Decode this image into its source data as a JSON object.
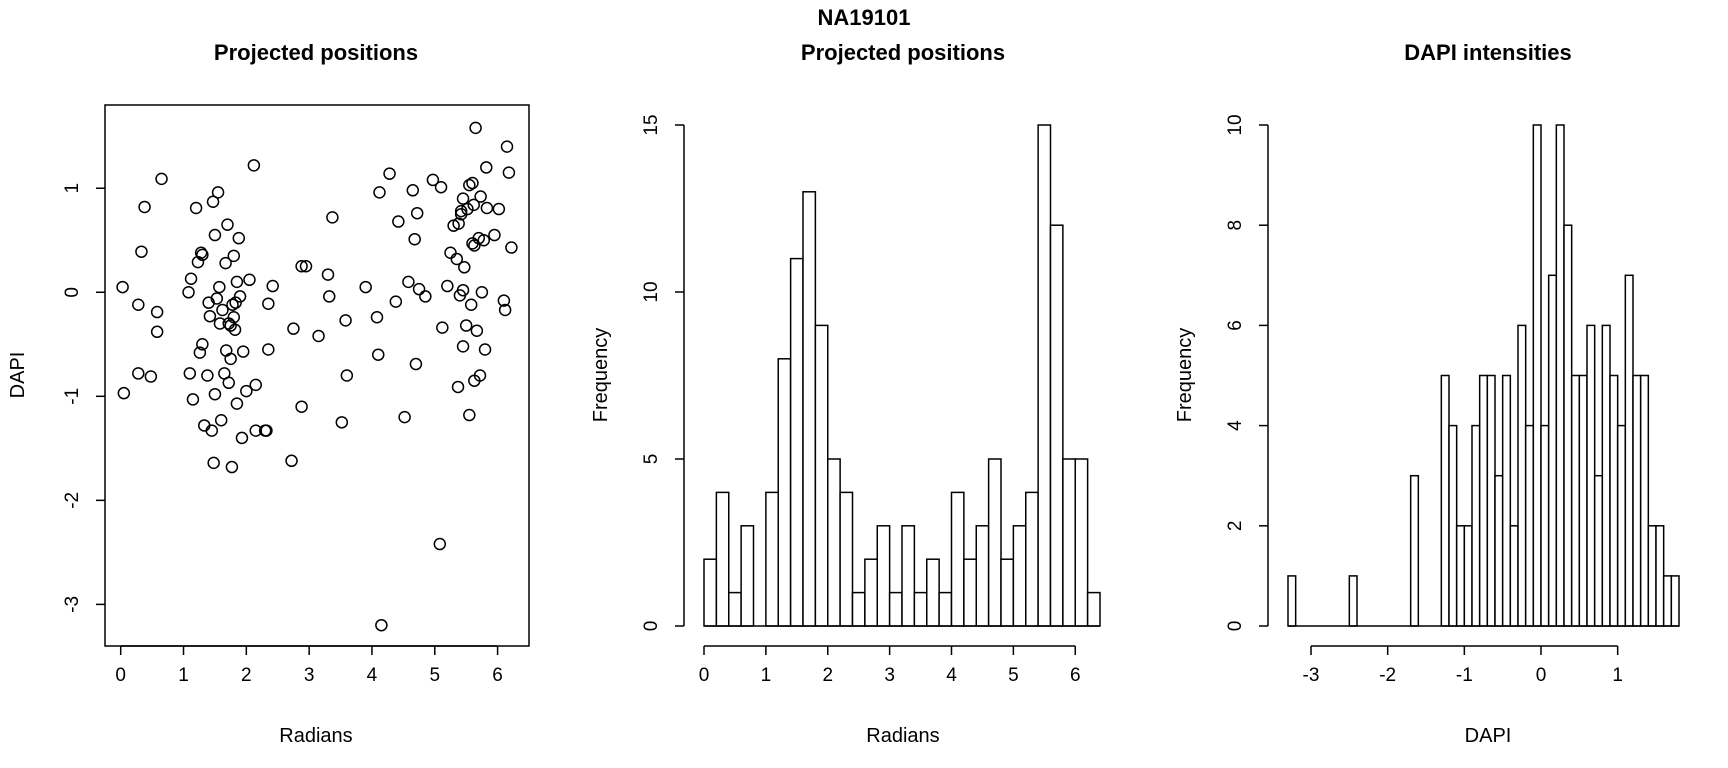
{
  "figure": {
    "title": "NA19101"
  },
  "chart_data": [
    {
      "type": "scatter",
      "title": "Projected positions",
      "xlabel": "Radians",
      "ylabel": "DAPI",
      "xlim": [
        -0.25,
        6.5
      ],
      "ylim": [
        -3.4,
        1.8
      ],
      "xticks": [
        0,
        1,
        2,
        3,
        4,
        5,
        6
      ],
      "yticks": [
        -3,
        -2,
        -1,
        0,
        1
      ],
      "grid": false,
      "points": [
        [
          0.03,
          0.05
        ],
        [
          0.05,
          -0.97
        ],
        [
          0.28,
          -0.12
        ],
        [
          0.28,
          -0.78
        ],
        [
          0.33,
          0.39
        ],
        [
          0.38,
          0.82
        ],
        [
          0.48,
          -0.81
        ],
        [
          0.58,
          -0.19
        ],
        [
          0.58,
          -0.38
        ],
        [
          0.65,
          1.09
        ],
        [
          1.08,
          0.0
        ],
        [
          1.1,
          -0.78
        ],
        [
          1.12,
          0.13
        ],
        [
          1.15,
          -1.03
        ],
        [
          1.2,
          0.81
        ],
        [
          1.23,
          0.29
        ],
        [
          1.26,
          -0.58
        ],
        [
          1.28,
          0.38
        ],
        [
          1.3,
          0.36
        ],
        [
          1.3,
          -0.5
        ],
        [
          1.33,
          -1.28
        ],
        [
          1.38,
          -0.8
        ],
        [
          1.4,
          -0.1
        ],
        [
          1.42,
          -0.23
        ],
        [
          1.45,
          -1.33
        ],
        [
          1.47,
          0.87
        ],
        [
          1.48,
          -1.64
        ],
        [
          1.5,
          -0.98
        ],
        [
          1.5,
          0.55
        ],
        [
          1.53,
          -0.06
        ],
        [
          1.55,
          0.96
        ],
        [
          1.57,
          0.05
        ],
        [
          1.58,
          -0.3
        ],
        [
          1.6,
          -1.23
        ],
        [
          1.62,
          -0.17
        ],
        [
          1.65,
          -0.78
        ],
        [
          1.67,
          0.28
        ],
        [
          1.68,
          -0.56
        ],
        [
          1.7,
          0.65
        ],
        [
          1.72,
          -0.3
        ],
        [
          1.72,
          -0.87
        ],
        [
          1.75,
          -0.32
        ],
        [
          1.75,
          -0.64
        ],
        [
          1.77,
          -1.68
        ],
        [
          1.78,
          -0.12
        ],
        [
          1.8,
          0.35
        ],
        [
          1.8,
          -0.24
        ],
        [
          1.82,
          -0.36
        ],
        [
          1.83,
          -0.1
        ],
        [
          1.85,
          0.1
        ],
        [
          1.85,
          -1.07
        ],
        [
          1.88,
          0.52
        ],
        [
          1.9,
          -0.04
        ],
        [
          1.93,
          -1.4
        ],
        [
          1.95,
          -0.57
        ],
        [
          2.0,
          -0.95
        ],
        [
          2.05,
          0.12
        ],
        [
          2.12,
          1.22
        ],
        [
          2.15,
          -0.89
        ],
        [
          2.15,
          -1.33
        ],
        [
          2.3,
          -1.33
        ],
        [
          2.32,
          -1.33
        ],
        [
          2.35,
          -0.55
        ],
        [
          2.35,
          -0.11
        ],
        [
          2.42,
          0.06
        ],
        [
          2.72,
          -1.62
        ],
        [
          2.75,
          -0.35
        ],
        [
          2.88,
          0.25
        ],
        [
          2.88,
          -1.1
        ],
        [
          2.95,
          0.25
        ],
        [
          3.15,
          -0.42
        ],
        [
          3.3,
          0.17
        ],
        [
          3.32,
          -0.04
        ],
        [
          3.37,
          0.72
        ],
        [
          3.52,
          -1.25
        ],
        [
          3.58,
          -0.27
        ],
        [
          3.6,
          -0.8
        ],
        [
          3.9,
          0.05
        ],
        [
          4.08,
          -0.24
        ],
        [
          4.1,
          -0.6
        ],
        [
          4.12,
          0.96
        ],
        [
          4.15,
          -3.2
        ],
        [
          4.28,
          1.14
        ],
        [
          4.38,
          -0.09
        ],
        [
          4.42,
          0.68
        ],
        [
          4.52,
          -1.2
        ],
        [
          4.58,
          0.1
        ],
        [
          4.65,
          0.98
        ],
        [
          4.68,
          0.51
        ],
        [
          4.7,
          -0.69
        ],
        [
          4.72,
          0.76
        ],
        [
          4.75,
          0.03
        ],
        [
          4.85,
          -0.04
        ],
        [
          4.97,
          1.08
        ],
        [
          5.08,
          -2.42
        ],
        [
          5.1,
          1.01
        ],
        [
          5.12,
          -0.34
        ],
        [
          5.2,
          0.06
        ],
        [
          5.25,
          0.38
        ],
        [
          5.3,
          0.64
        ],
        [
          5.35,
          0.32
        ],
        [
          5.37,
          -0.91
        ],
        [
          5.38,
          0.66
        ],
        [
          5.4,
          -0.03
        ],
        [
          5.42,
          0.78
        ],
        [
          5.42,
          0.75
        ],
        [
          5.45,
          0.02
        ],
        [
          5.45,
          0.9
        ],
        [
          5.45,
          -0.52
        ],
        [
          5.47,
          0.24
        ],
        [
          5.5,
          -0.32
        ],
        [
          5.52,
          0.8
        ],
        [
          5.55,
          -1.18
        ],
        [
          5.55,
          1.03
        ],
        [
          5.58,
          -0.12
        ],
        [
          5.6,
          0.47
        ],
        [
          5.6,
          1.05
        ],
        [
          5.62,
          0.84
        ],
        [
          5.63,
          0.45
        ],
        [
          5.63,
          -0.85
        ],
        [
          5.65,
          1.58
        ],
        [
          5.67,
          -0.37
        ],
        [
          5.7,
          0.52
        ],
        [
          5.72,
          -0.8
        ],
        [
          5.73,
          0.92
        ],
        [
          5.75,
          0.0
        ],
        [
          5.78,
          0.5
        ],
        [
          5.8,
          -0.55
        ],
        [
          5.82,
          1.2
        ],
        [
          5.83,
          0.81
        ],
        [
          5.95,
          0.55
        ],
        [
          6.02,
          0.8
        ],
        [
          6.1,
          -0.08
        ],
        [
          6.12,
          -0.17
        ],
        [
          6.15,
          1.4
        ],
        [
          6.18,
          1.15
        ],
        [
          6.22,
          0.43
        ]
      ]
    },
    {
      "type": "bar",
      "subtype": "histogram",
      "title": "Projected positions",
      "xlabel": "Radians",
      "ylabel": "Frequency",
      "bin_start": 0,
      "bin_width": 0.2,
      "values": [
        2,
        4,
        1,
        3,
        0,
        4,
        8,
        11,
        13,
        9,
        5,
        4,
        1,
        2,
        3,
        1,
        3,
        1,
        2,
        1,
        4,
        2,
        3,
        5,
        2,
        3,
        4,
        15,
        12,
        5,
        5,
        1
      ],
      "xticks": [
        0,
        1,
        2,
        3,
        4,
        5,
        6
      ],
      "yticks": [
        0,
        5,
        10,
        15
      ],
      "ylim": [
        0,
        15
      ],
      "grid": false
    },
    {
      "type": "bar",
      "subtype": "histogram",
      "title": "DAPI intensities",
      "xlabel": "DAPI",
      "ylabel": "Frequency",
      "bin_start": -3.3,
      "bin_width": 0.1,
      "values": [
        1,
        0,
        0,
        0,
        0,
        0,
        0,
        0,
        1,
        0,
        0,
        0,
        0,
        0,
        0,
        0,
        3,
        0,
        0,
        0,
        5,
        4,
        2,
        2,
        4,
        5,
        5,
        3,
        5,
        2,
        6,
        4,
        10,
        4,
        7,
        10,
        8,
        5,
        5,
        6,
        3,
        6,
        5,
        4,
        7,
        5,
        5,
        2,
        2,
        1,
        1
      ],
      "xticks": [
        -3,
        -2,
        -1,
        0,
        1
      ],
      "yticks": [
        0,
        2,
        4,
        6,
        8,
        10
      ],
      "ylim": [
        0,
        10
      ],
      "grid": false
    }
  ]
}
